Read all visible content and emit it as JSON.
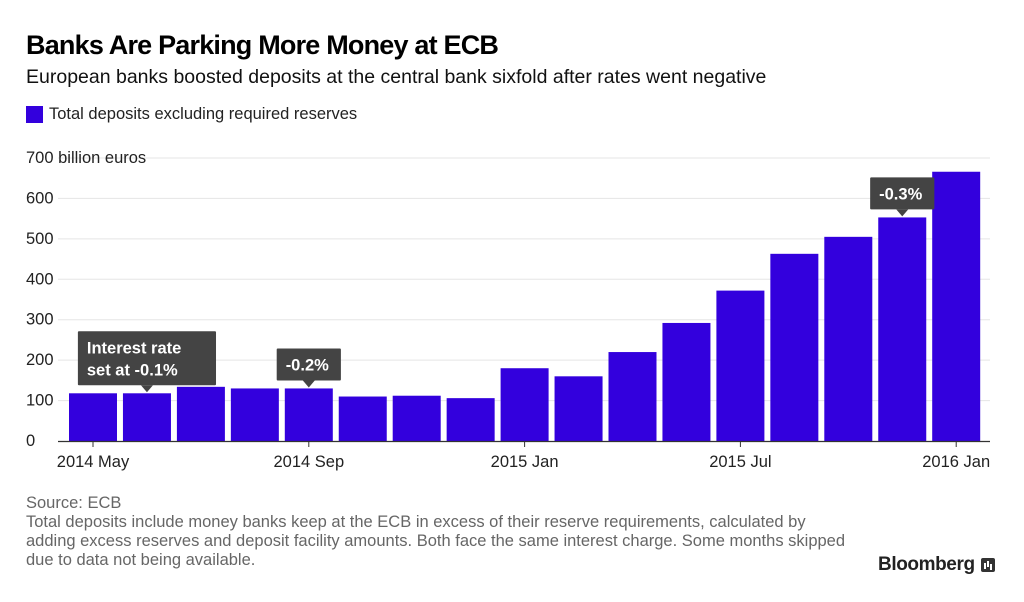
{
  "colors": {
    "bar": "#3300dd",
    "callout": "#444444",
    "grid": "#e5e5e5",
    "axis": "#333333"
  },
  "brand": {
    "name": "Bloomberg",
    "icon": "bloomberg-terminal-icon"
  },
  "footer": {
    "source": "Source: ECB",
    "note": "Total deposits include money banks keep at the ECB in excess of their reserve requirements, calculated by adding excess reserves and deposit facility amounts. Both face the same interest charge. Some months skipped due to data not being available."
  },
  "chart_data": {
    "type": "bar",
    "title": "Banks Are Parking More Money at ECB",
    "subtitle": "European banks boosted deposits at the central bank sixfold after rates went negative",
    "series": [
      {
        "name": "Total deposits excluding required reserves",
        "values": [
          118,
          118,
          134,
          130,
          130,
          110,
          112,
          106,
          180,
          160,
          220,
          292,
          372,
          463,
          505,
          553,
          666
        ]
      }
    ],
    "ylabel_unit": "700 billion euros",
    "ylim": [
      0,
      700
    ],
    "yticks": [
      0,
      100,
      200,
      300,
      400,
      500,
      600,
      700
    ],
    "xtick_labels": [
      {
        "bar": 0,
        "label": "2014 May"
      },
      {
        "bar": 4,
        "label": "2014 Sep"
      },
      {
        "bar": 8,
        "label": "2015 Jan"
      },
      {
        "bar": 12,
        "label": "2015 Jul"
      },
      {
        "bar": 16,
        "label": "2016 Jan"
      }
    ],
    "grid": true,
    "legend": "top-left",
    "annotations": [
      {
        "bar": 1,
        "lines": [
          "Interest rate",
          "set at -0.1%"
        ]
      },
      {
        "bar": 4,
        "lines": [
          "-0.2%"
        ]
      },
      {
        "bar": 15,
        "lines": [
          "-0.3%"
        ]
      }
    ]
  }
}
